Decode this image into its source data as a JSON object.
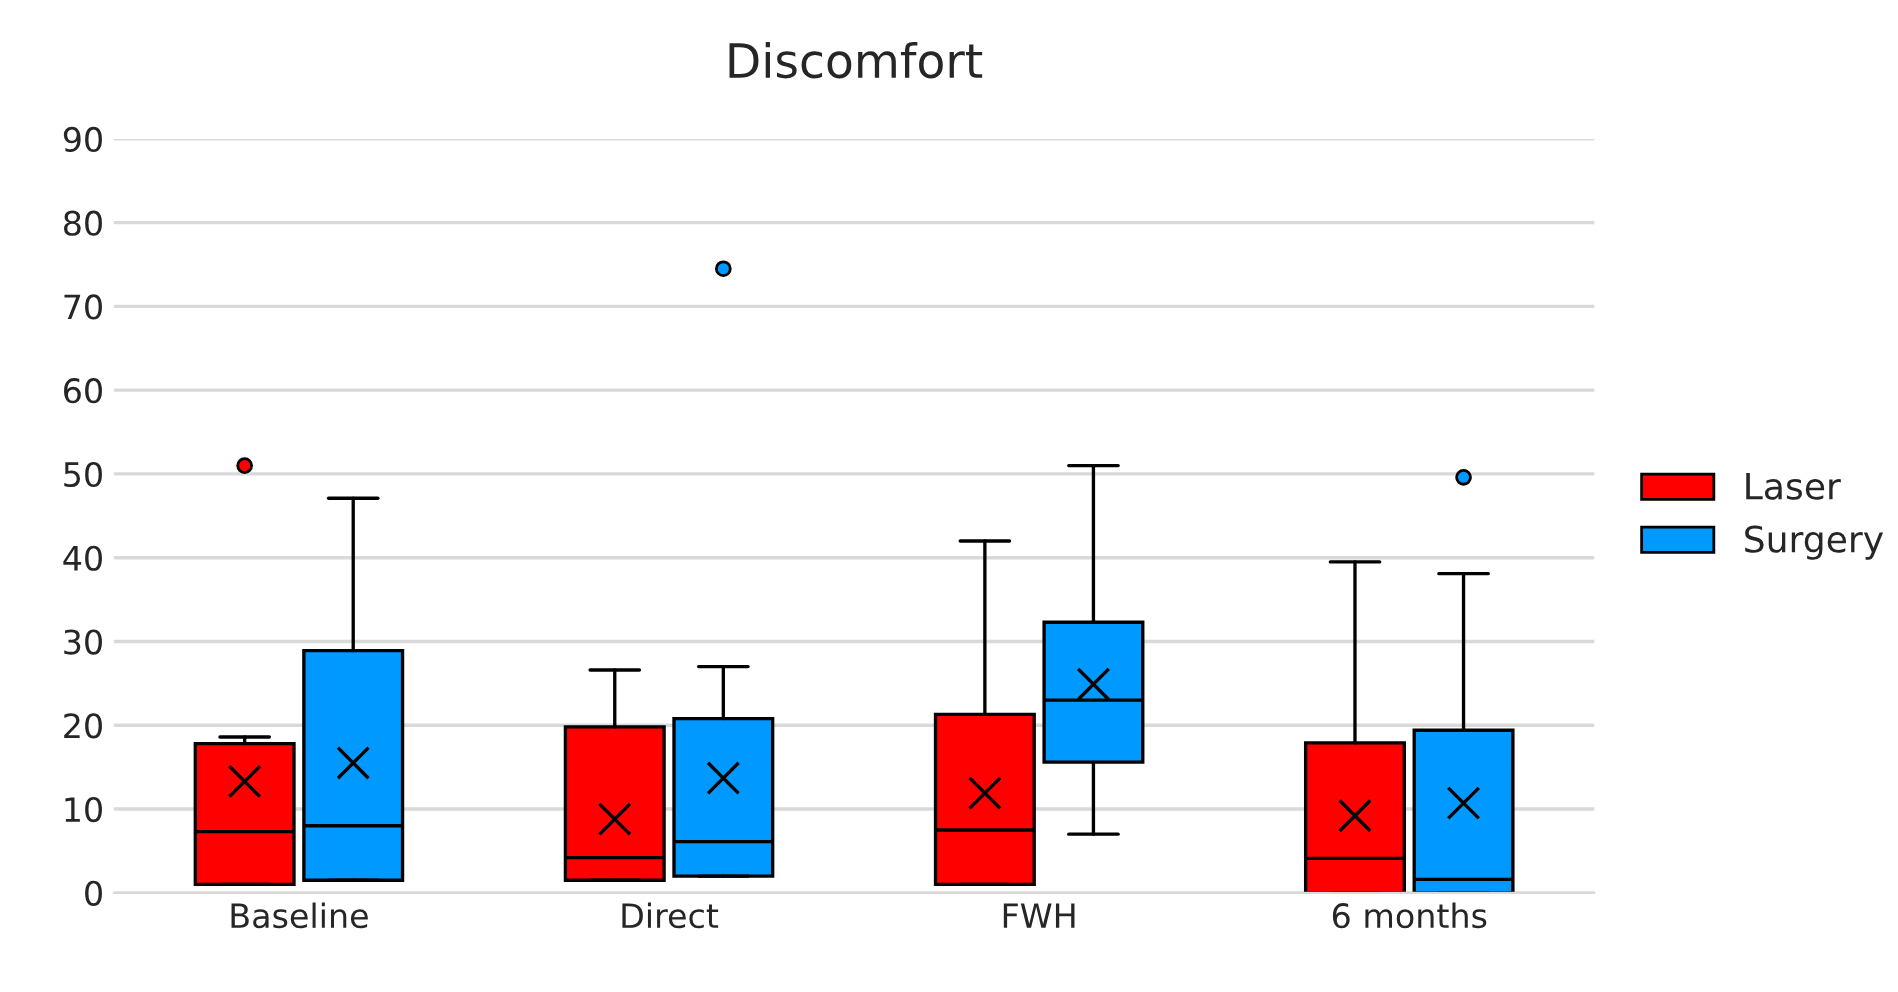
{
  "chart_data": {
    "type": "box",
    "title": "Discomfort",
    "categories": [
      "Baseline",
      "Direct",
      "FWH",
      "6 months"
    ],
    "ylim": [
      0,
      90
    ],
    "yticks": [
      0,
      10,
      20,
      30,
      40,
      50,
      60,
      70,
      80,
      90
    ],
    "grid": "y",
    "legend": "right",
    "series": [
      {
        "name": "Laser",
        "color": "#ff0000",
        "boxes": [
          {
            "low": 1,
            "q1": 1,
            "median": 7.3,
            "q3": 17.8,
            "high": 18.6,
            "mean": 13.3,
            "outliers": [
              51
            ]
          },
          {
            "low": 1.5,
            "q1": 1.5,
            "median": 4.2,
            "q3": 19.8,
            "high": 26.6,
            "mean": 8.8
          },
          {
            "low": 1,
            "q1": 1,
            "median": 7.5,
            "q3": 21.3,
            "high": 42,
            "mean": 11.9
          },
          {
            "low": 0,
            "q1": 0,
            "median": 4.1,
            "q3": 17.9,
            "high": 39.5,
            "mean": 9.2
          }
        ]
      },
      {
        "name": "Surgery",
        "color": "#0099ff",
        "boxes": [
          {
            "low": 1.5,
            "q1": 1.5,
            "median": 8,
            "q3": 28.9,
            "high": 47.1,
            "mean": 15.5
          },
          {
            "low": 2,
            "q1": 2,
            "median": 6.1,
            "q3": 20.8,
            "high": 27,
            "mean": 13.7,
            "outliers": [
              74.5
            ]
          },
          {
            "low": 7,
            "q1": 15.6,
            "median": 23,
            "q3": 32.3,
            "high": 51,
            "mean": 24.9
          },
          {
            "low": 0,
            "q1": 0,
            "median": 1.6,
            "q3": 19.4,
            "high": 38.1,
            "mean": 10.7,
            "outliers": [
              49.6
            ]
          }
        ]
      }
    ]
  }
}
